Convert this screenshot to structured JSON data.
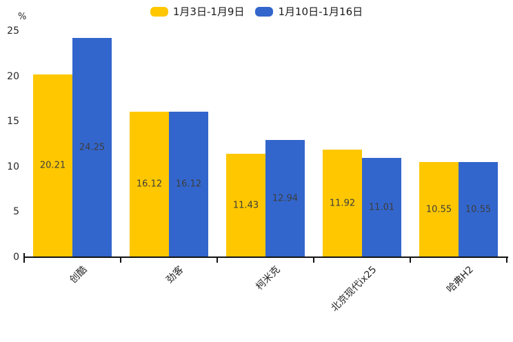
{
  "chart_data": {
    "type": "bar",
    "title": "",
    "xlabel": "",
    "ylabel": "%",
    "ylim": [
      0,
      25
    ],
    "yticks": [
      0,
      5,
      10,
      15,
      20,
      25
    ],
    "grid": false,
    "legend_position": "top-center",
    "value_labels": "inside-center",
    "categories": [
      "创酷",
      "劲客",
      "柯米克",
      "北京现代ix25",
      "哈弗H2"
    ],
    "series": [
      {
        "name": "1月3日-1月9日",
        "color": "#fec700",
        "values": [
          20.21,
          16.12,
          11.43,
          11.92,
          10.55
        ]
      },
      {
        "name": "1月10日-1月16日",
        "color": "#3366cc",
        "values": [
          24.25,
          16.12,
          12.94,
          11.01,
          10.55
        ]
      }
    ]
  },
  "colors": {
    "background": "#ffffff",
    "axis": "#111111",
    "value_label_text": "#3d3d3d",
    "tick_label_text": "#262626",
    "legend_text": "#1a1a1a"
  }
}
